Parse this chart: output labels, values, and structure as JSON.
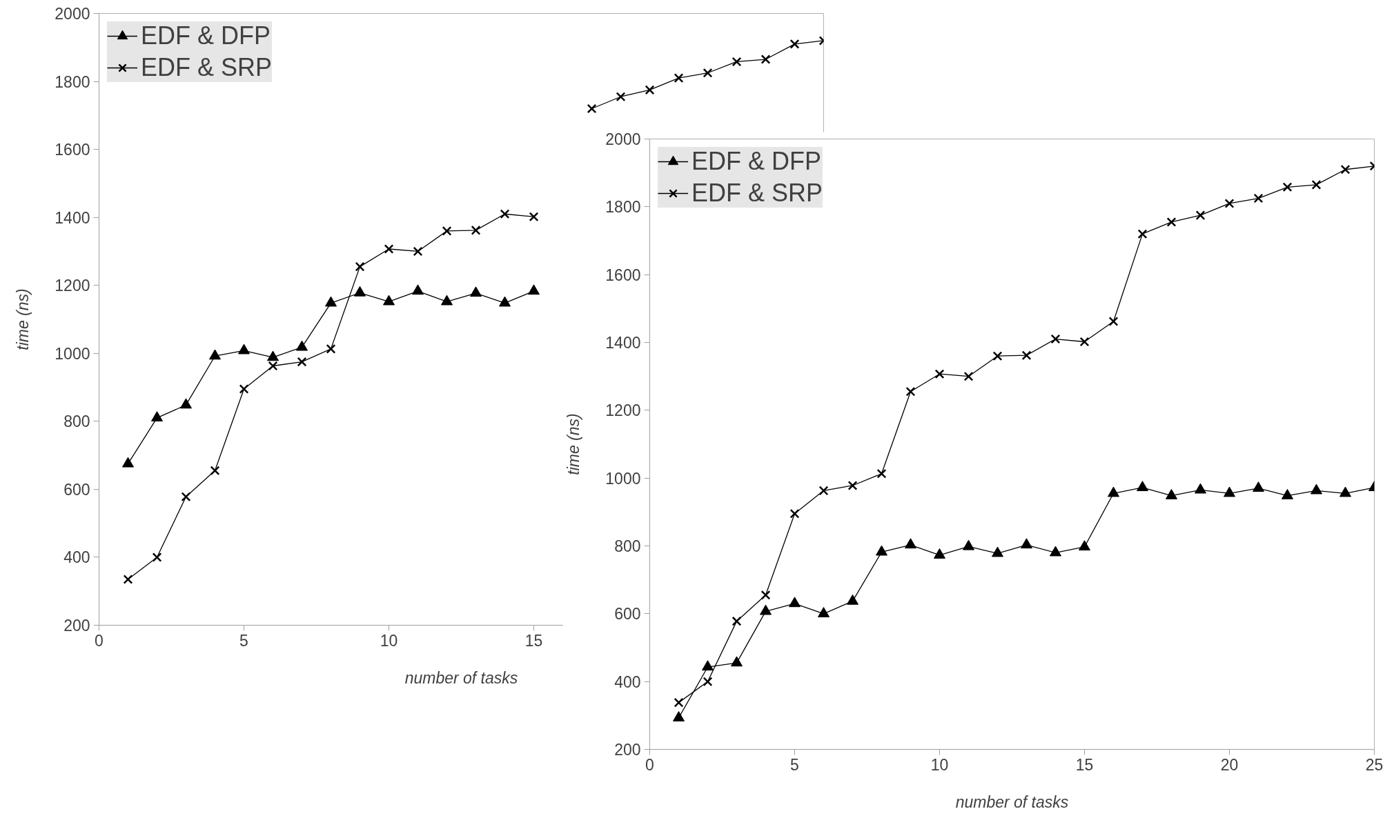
{
  "chart_data": [
    {
      "type": "line",
      "xlabel": "number of tasks",
      "ylabel": "time (ns)",
      "xlim": [
        0,
        25
      ],
      "ylim": [
        200,
        2000
      ],
      "xticks": [
        0,
        5,
        10,
        15
      ],
      "yticks": [
        200,
        400,
        600,
        800,
        1000,
        1200,
        1400,
        1600,
        1800,
        2000
      ],
      "grid": false,
      "legend": "top left",
      "x": [
        1,
        2,
        3,
        4,
        5,
        6,
        7,
        8,
        9,
        10,
        11,
        12,
        13,
        14,
        15,
        16,
        17,
        18,
        19,
        20,
        21,
        22,
        23,
        24,
        25
      ],
      "series": [
        {
          "name": "EDF & DFP",
          "color": "#000000",
          "marker": "triangle",
          "values": [
            675,
            810,
            848,
            992,
            1008,
            988,
            1018,
            1148,
            1178,
            1152,
            1183,
            1152,
            1177,
            1148,
            1183,
            null,
            null,
            null,
            null,
            null,
            null,
            null,
            null,
            null,
            null
          ]
        },
        {
          "name": "EDF & SRP",
          "color": "#000000",
          "marker": "cross",
          "values": [
            335,
            400,
            578,
            655,
            895,
            963,
            975,
            1013,
            1255,
            1307,
            1300,
            1360,
            1362,
            1410,
            1402,
            null,
            1720,
            1755,
            1775,
            1810,
            1825,
            1858,
            1865,
            1910,
            1920
          ]
        }
      ]
    },
    {
      "type": "line",
      "xlabel": "number of tasks",
      "ylabel": "time (ns)",
      "xlim": [
        0,
        25
      ],
      "ylim": [
        200,
        2000
      ],
      "xticks": [
        0,
        5,
        10,
        15,
        20,
        25
      ],
      "yticks": [
        200,
        400,
        600,
        800,
        1000,
        1200,
        1400,
        1600,
        1800,
        2000
      ],
      "grid": false,
      "legend": "top left",
      "x": [
        1,
        2,
        3,
        4,
        5,
        6,
        7,
        8,
        9,
        10,
        11,
        12,
        13,
        14,
        15,
        16,
        17,
        18,
        19,
        20,
        21,
        22,
        23,
        24,
        25
      ],
      "series": [
        {
          "name": "EDF & DFP",
          "color": "#000000",
          "marker": "triangle",
          "values": [
            293,
            443,
            455,
            607,
            630,
            600,
            637,
            782,
            803,
            773,
            798,
            778,
            803,
            780,
            797,
            955,
            972,
            948,
            965,
            955,
            970,
            948,
            963,
            955,
            972
          ]
        },
        {
          "name": "EDF & SRP",
          "color": "#000000",
          "marker": "cross",
          "values": [
            338,
            400,
            578,
            655,
            895,
            963,
            978,
            1013,
            1255,
            1307,
            1300,
            1360,
            1362,
            1410,
            1402,
            1462,
            1720,
            1755,
            1775,
            1810,
            1825,
            1858,
            1865,
            1910,
            1920
          ]
        }
      ]
    }
  ]
}
